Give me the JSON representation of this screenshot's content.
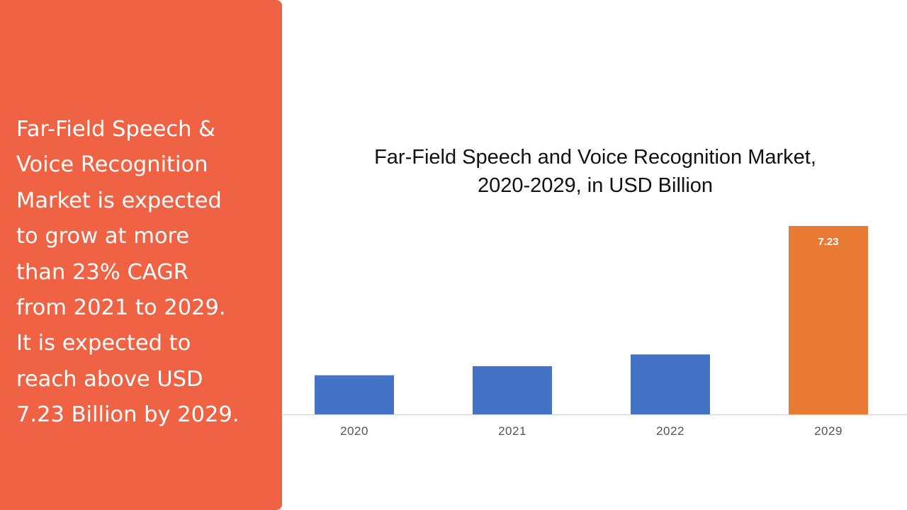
{
  "summary": {
    "lines": [
      "Far-Field Speech &",
      "Voice Recognition",
      "Market is expected",
      "to grow at more",
      "than 23% CAGR",
      "from 2021 to 2029.",
      "It is expected to",
      "reach above USD",
      "7.23 Billion by 2029."
    ]
  },
  "colors": {
    "panel": "#ef6344",
    "bar_default": "#4472c4",
    "bar_highlight": "#e97a33",
    "baseline": "#d9d9d9"
  },
  "chart_data": {
    "type": "bar",
    "title_lines": [
      "Far-Field Speech and Voice Recognition Market,",
      "2020-2029, in USD Billion"
    ],
    "categories": [
      "2020",
      "2021",
      "2022",
      "2029"
    ],
    "values": [
      1.5,
      1.85,
      2.3,
      7.23
    ],
    "data_labels": [
      "",
      "",
      "",
      "7.23"
    ],
    "highlight_index": 3,
    "ylim": [
      0,
      7.23
    ],
    "grid": false,
    "legend": "none"
  }
}
